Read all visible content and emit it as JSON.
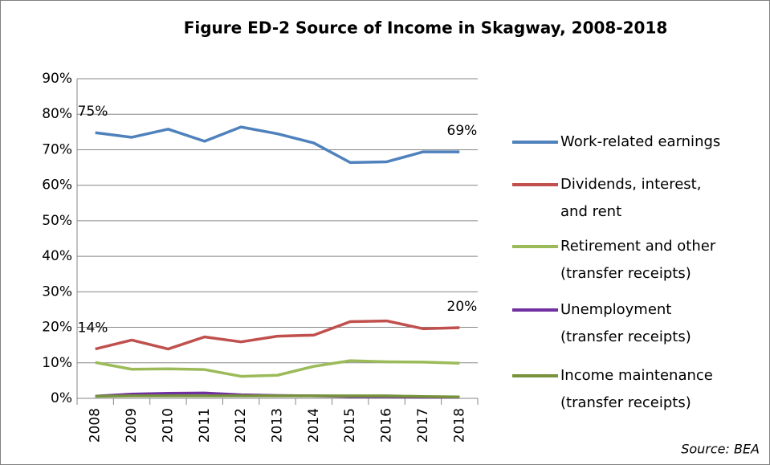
{
  "chart_data": {
    "type": "line",
    "title": "Figure ED-2 Source of Income in Skagway, 2008-2018",
    "source": "Source: BEA",
    "categories": [
      "2008",
      "2009",
      "2010",
      "2011",
      "2012",
      "2013",
      "2014",
      "2015",
      "2016",
      "2017",
      "2018"
    ],
    "series": [
      {
        "name": "Work-related earnings",
        "color": "#4f81bd",
        "values": [
          74.8,
          73.5,
          75.8,
          72.4,
          76.4,
          74.5,
          71.9,
          66.4,
          66.6,
          69.4,
          69.4
        ],
        "value_labels": [
          "75%",
          null,
          null,
          null,
          null,
          null,
          null,
          null,
          null,
          null,
          "69%"
        ]
      },
      {
        "name": "Dividends, interest, and rent",
        "color": "#c0504d",
        "values": [
          13.9,
          16.4,
          13.9,
          17.3,
          15.9,
          17.5,
          17.8,
          21.6,
          21.8,
          19.6,
          19.9
        ],
        "value_labels": [
          "14%",
          null,
          null,
          null,
          null,
          null,
          null,
          null,
          null,
          null,
          "20%"
        ]
      },
      {
        "name": "Retirement and other (transfer receipts)",
        "color": "#9bbb59",
        "values": [
          10.1,
          8.2,
          8.3,
          8.1,
          6.2,
          6.5,
          9.0,
          10.6,
          10.3,
          10.2,
          9.9
        ]
      },
      {
        "name": "Unemployment (transfer receipts)",
        "color": "#7030a0",
        "values": [
          0.6,
          1.2,
          1.4,
          1.5,
          1.0,
          0.8,
          0.7,
          0.5,
          0.5,
          0.3,
          0.3
        ]
      },
      {
        "name": "Income maintenance (transfer receipts)",
        "color": "#77933c",
        "values": [
          0.6,
          0.7,
          0.7,
          0.7,
          0.7,
          0.7,
          0.7,
          0.7,
          0.7,
          0.5,
          0.4
        ]
      }
    ],
    "ylim": [
      0,
      90
    ],
    "yticks": [
      {
        "value": 0,
        "label": "0%"
      },
      {
        "value": 10,
        "label": "10%"
      },
      {
        "value": 20,
        "label": "20%"
      },
      {
        "value": 30,
        "label": "30%"
      },
      {
        "value": 40,
        "label": "40%"
      },
      {
        "value": 50,
        "label": "50%"
      },
      {
        "value": 60,
        "label": "60%"
      },
      {
        "value": 70,
        "label": "70%"
      },
      {
        "value": 80,
        "label": "80%"
      },
      {
        "value": 90,
        "label": "90%"
      }
    ],
    "grid": true,
    "legend": "right"
  }
}
